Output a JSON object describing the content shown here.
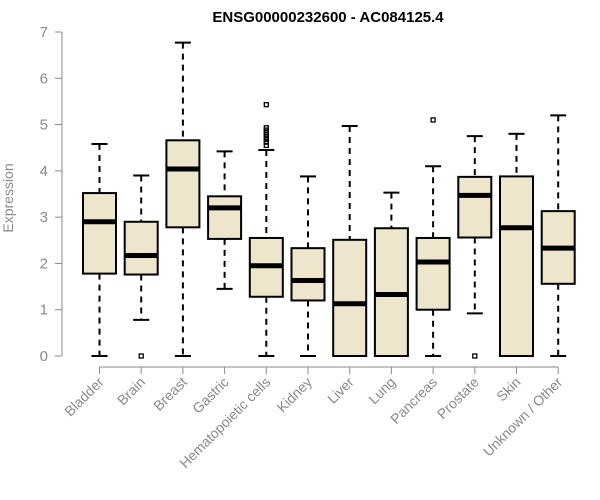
{
  "chart_data": {
    "type": "boxplot",
    "title": "ENSG00000232600 - AC084125.4",
    "xlabel": "",
    "ylabel": "Expression",
    "ylim": [
      0,
      7
    ],
    "yticks": [
      0,
      1,
      2,
      3,
      4,
      5,
      6,
      7
    ],
    "grid": false,
    "colors": {
      "box_fill": "#ede5cc",
      "axis": "#8a8a8a"
    },
    "categories": [
      "Bladder",
      "Brain",
      "Breast",
      "Gastric",
      "Hematopoietic cells",
      "Kidney",
      "Liver",
      "Lung",
      "Pancreas",
      "Prostate",
      "Skin",
      "Unknown / Other"
    ],
    "boxes": [
      {
        "name": "Bladder",
        "whisker_low": 0.0,
        "q1": 1.78,
        "median": 2.9,
        "q3": 3.52,
        "whisker_high": 4.58,
        "outliers": []
      },
      {
        "name": "Brain",
        "whisker_low": 0.78,
        "q1": 1.76,
        "median": 2.17,
        "q3": 2.9,
        "whisker_high": 3.9,
        "outliers": [
          0.0
        ]
      },
      {
        "name": "Breast",
        "whisker_low": 0.0,
        "q1": 2.78,
        "median": 4.04,
        "q3": 4.66,
        "whisker_high": 6.77,
        "outliers": []
      },
      {
        "name": "Gastric",
        "whisker_low": 1.45,
        "q1": 2.53,
        "median": 3.2,
        "q3": 3.45,
        "whisker_high": 4.42,
        "outliers": []
      },
      {
        "name": "Hematopoietic cells",
        "whisker_low": 0.0,
        "q1": 1.28,
        "median": 1.95,
        "q3": 2.55,
        "whisker_high": 4.45,
        "outliers": [
          4.55,
          4.62,
          4.68,
          4.73,
          4.78,
          4.83,
          4.88,
          4.93,
          5.43
        ]
      },
      {
        "name": "Kidney",
        "whisker_low": 0.0,
        "q1": 1.2,
        "median": 1.63,
        "q3": 2.33,
        "whisker_high": 3.88,
        "outliers": []
      },
      {
        "name": "Liver",
        "whisker_low": 0.0,
        "q1": 0.0,
        "median": 1.13,
        "q3": 2.51,
        "whisker_high": 4.97,
        "outliers": []
      },
      {
        "name": "Lung",
        "whisker_low": 0.0,
        "q1": 0.0,
        "median": 1.33,
        "q3": 2.76,
        "whisker_high": 3.53,
        "outliers": []
      },
      {
        "name": "Pancreas",
        "whisker_low": 0.0,
        "q1": 1.0,
        "median": 2.03,
        "q3": 2.55,
        "whisker_high": 4.1,
        "outliers": [
          5.1
        ]
      },
      {
        "name": "Prostate",
        "whisker_low": 0.92,
        "q1": 2.56,
        "median": 3.47,
        "q3": 3.87,
        "whisker_high": 4.75,
        "outliers": [
          0.0
        ]
      },
      {
        "name": "Skin",
        "whisker_low": 0.0,
        "q1": 0.0,
        "median": 2.77,
        "q3": 3.88,
        "whisker_high": 4.8,
        "outliers": []
      },
      {
        "name": "Unknown / Other",
        "whisker_low": 0.0,
        "q1": 1.56,
        "median": 2.33,
        "q3": 3.13,
        "whisker_high": 5.2,
        "outliers": []
      }
    ]
  }
}
